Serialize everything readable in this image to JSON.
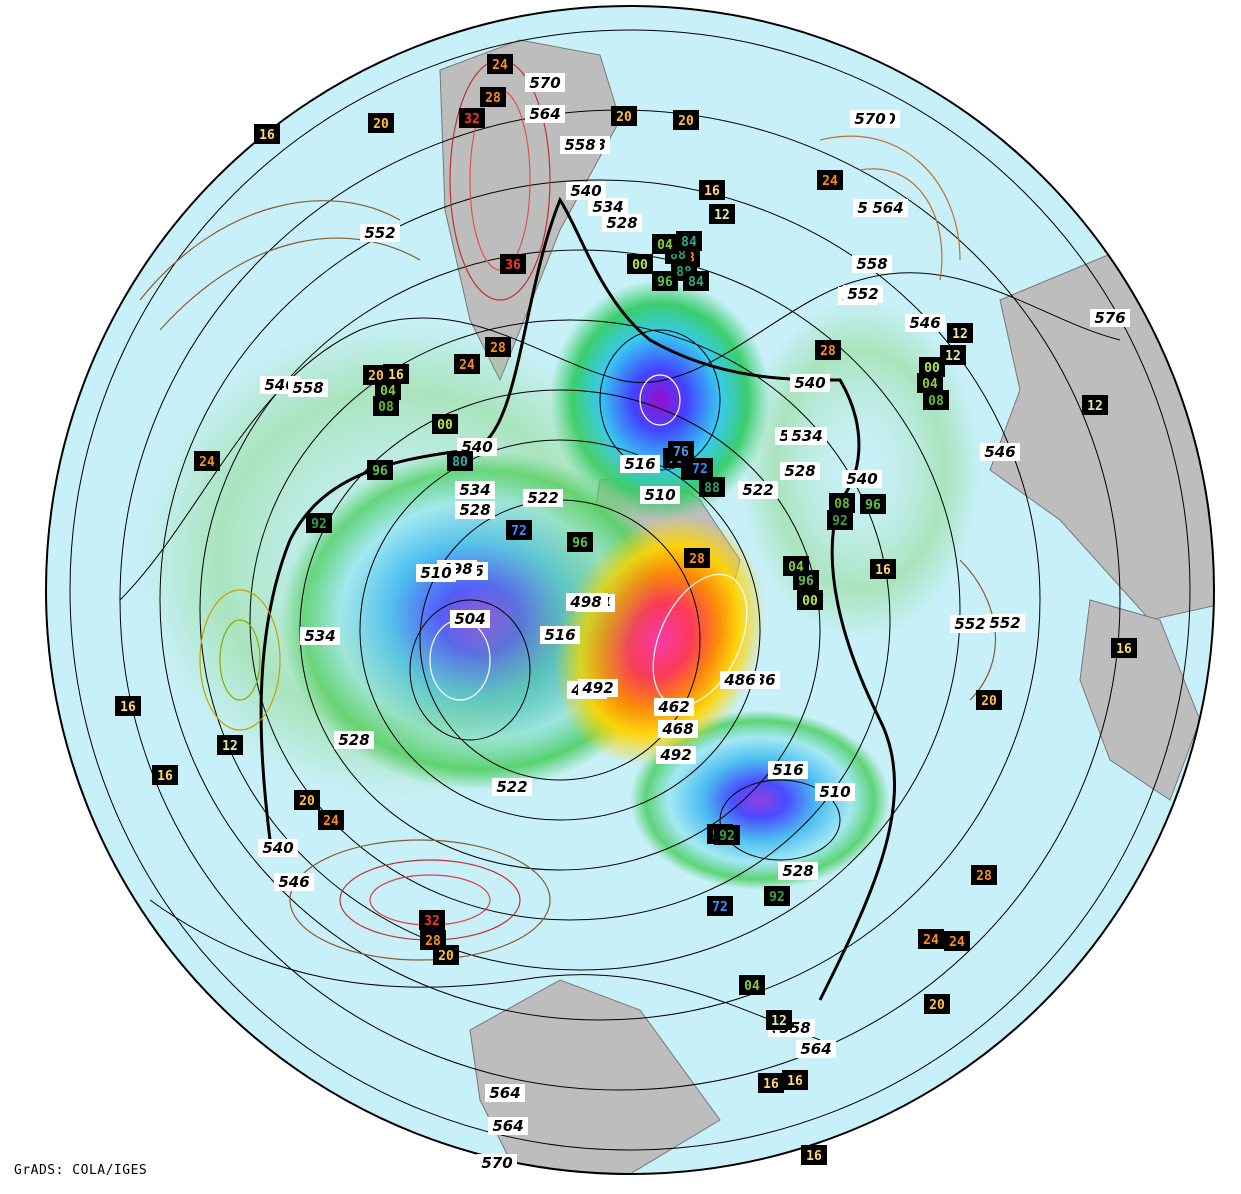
{
  "credit": "GrADS: COLA/IGES",
  "map": {
    "projection": "polar-stereographic north",
    "ocean_color": "#c8f0f8",
    "land_color": "#b9b9b9",
    "frame_color": "#000000"
  },
  "height_labels_dam": [
    {
      "text": "570"
    },
    {
      "text": "564"
    },
    {
      "text": "558"
    },
    {
      "text": "552"
    },
    {
      "text": "546"
    },
    {
      "text": "540"
    },
    {
      "text": "534"
    },
    {
      "text": "528"
    },
    {
      "text": "522"
    },
    {
      "text": "516"
    },
    {
      "text": "510"
    },
    {
      "text": "504"
    },
    {
      "text": "498"
    },
    {
      "text": "492"
    },
    {
      "text": "486"
    },
    {
      "text": "468"
    },
    {
      "text": "462"
    },
    {
      "text": "552"
    },
    {
      "text": "558"
    },
    {
      "text": "564"
    },
    {
      "text": "570"
    },
    {
      "text": "576"
    },
    {
      "text": "546"
    },
    {
      "text": "540"
    },
    {
      "text": "534"
    },
    {
      "text": "528"
    },
    {
      "text": "522"
    },
    {
      "text": "516"
    },
    {
      "text": "510"
    },
    {
      "text": "498"
    },
    {
      "text": "492"
    },
    {
      "text": "546"
    },
    {
      "text": "552"
    },
    {
      "text": "558"
    },
    {
      "text": "564"
    },
    {
      "text": "570"
    },
    {
      "text": "540"
    },
    {
      "text": "534"
    },
    {
      "text": "528"
    },
    {
      "text": "522"
    },
    {
      "text": "516"
    },
    {
      "text": "510"
    },
    {
      "text": "546"
    },
    {
      "text": "552"
    },
    {
      "text": "558"
    },
    {
      "text": "564"
    },
    {
      "text": "570"
    },
    {
      "text": "540"
    },
    {
      "text": "534"
    },
    {
      "text": "528"
    },
    {
      "text": "552"
    },
    {
      "text": "558"
    },
    {
      "text": "564"
    },
    {
      "text": "570"
    },
    {
      "text": "540"
    },
    {
      "text": "534"
    },
    {
      "text": "528"
    },
    {
      "text": "522"
    },
    {
      "text": "516"
    },
    {
      "text": "510"
    },
    {
      "text": "504"
    },
    {
      "text": "498"
    },
    {
      "text": "492"
    },
    {
      "text": "486"
    },
    {
      "text": "564"
    },
    {
      "text": "558"
    }
  ],
  "temp_labels": [
    {
      "text": "24",
      "color": "#ff8c1a"
    },
    {
      "text": "28",
      "color": "#ff8c1a"
    },
    {
      "text": "32",
      "color": "#ff3030"
    },
    {
      "text": "20",
      "color": "#ffbf40"
    },
    {
      "text": "20",
      "color": "#ffbf40"
    },
    {
      "text": "16",
      "color": "#ffd870"
    },
    {
      "text": "20",
      "color": "#ffbf40"
    },
    {
      "text": "16",
      "color": "#ffd870"
    },
    {
      "text": "12",
      "color": "#e6e6a0"
    },
    {
      "text": "24",
      "color": "#ff8c1a"
    },
    {
      "text": "36",
      "color": "#ff3030"
    },
    {
      "text": "24",
      "color": "#ff8c1a"
    },
    {
      "text": "28",
      "color": "#ff8c1a"
    },
    {
      "text": "28",
      "color": "#ff8c1a"
    },
    {
      "text": "16",
      "color": "#ffd870"
    },
    {
      "text": "12",
      "color": "#e6e6a0"
    },
    {
      "text": "12",
      "color": "#e6e6a0"
    },
    {
      "text": "12",
      "color": "#e6e6a0"
    },
    {
      "text": "24",
      "color": "#ff8c1a"
    },
    {
      "text": "16",
      "color": "#ffd870"
    },
    {
      "text": "12",
      "color": "#e6e6a0"
    },
    {
      "text": "16",
      "color": "#ffd870"
    },
    {
      "text": "16",
      "color": "#ffd870"
    },
    {
      "text": "20",
      "color": "#ffbf40"
    },
    {
      "text": "24",
      "color": "#ff8c1a"
    },
    {
      "text": "28",
      "color": "#ff8c1a"
    },
    {
      "text": "24",
      "color": "#ff8c1a"
    },
    {
      "text": "20",
      "color": "#ffbf40"
    },
    {
      "text": "32",
      "color": "#ff3030"
    },
    {
      "text": "28",
      "color": "#ff8c1a"
    },
    {
      "text": "20",
      "color": "#ffbf40"
    },
    {
      "text": "16",
      "color": "#ffd870"
    },
    {
      "text": "16",
      "color": "#ffd870"
    },
    {
      "text": "12",
      "color": "#e6e6a0"
    },
    {
      "text": "20",
      "color": "#ffbf40"
    },
    {
      "text": "24",
      "color": "#ff8c1a"
    },
    {
      "text": "16",
      "color": "#ffd870"
    },
    {
      "text": "28",
      "color": "#ff8c1a"
    },
    {
      "text": "20",
      "color": "#ffbf40"
    },
    {
      "text": "28",
      "color": "#ff8c1a"
    },
    {
      "text": "00",
      "color": "#b4e64a"
    },
    {
      "text": "04",
      "color": "#8ccc3a"
    },
    {
      "text": "08",
      "color": "#66b830"
    },
    {
      "text": "92",
      "color": "#3aa040"
    },
    {
      "text": "96",
      "color": "#5fc24a"
    },
    {
      "text": "72",
      "color": "#3a8cff"
    },
    {
      "text": "80",
      "color": "#28b4a8"
    },
    {
      "text": "88",
      "color": "#2aa070"
    },
    {
      "text": "84",
      "color": "#30a890"
    },
    {
      "text": "76",
      "color": "#46a0e6"
    },
    {
      "text": "00",
      "color": "#b4e64a"
    },
    {
      "text": "04",
      "color": "#8ccc3a"
    },
    {
      "text": "96",
      "color": "#5fc24a"
    },
    {
      "text": "92",
      "color": "#3aa040"
    },
    {
      "text": "72",
      "color": "#3a8cff"
    },
    {
      "text": "96",
      "color": "#5fc24a"
    },
    {
      "text": "00",
      "color": "#b4e64a"
    },
    {
      "text": "04",
      "color": "#8ccc3a"
    },
    {
      "text": "08",
      "color": "#66b830"
    },
    {
      "text": "92",
      "color": "#3aa040"
    },
    {
      "text": "96",
      "color": "#5fc24a"
    },
    {
      "text": "88",
      "color": "#2aa070"
    },
    {
      "text": "04",
      "color": "#8ccc3a"
    },
    {
      "text": "08",
      "color": "#66b830"
    },
    {
      "text": "00",
      "color": "#b4e64a"
    },
    {
      "text": "96",
      "color": "#5fc24a"
    },
    {
      "text": "92",
      "color": "#3aa040"
    },
    {
      "text": "84",
      "color": "#30a890"
    },
    {
      "text": "88",
      "color": "#2aa070"
    },
    {
      "text": "80",
      "color": "#28b4a8"
    },
    {
      "text": "76",
      "color": "#46a0e6"
    },
    {
      "text": "72",
      "color": "#3a8cff"
    },
    {
      "text": "92",
      "color": "#3aa040"
    },
    {
      "text": "04",
      "color": "#8ccc3a"
    },
    {
      "text": "16",
      "color": "#ffd870"
    }
  ]
}
